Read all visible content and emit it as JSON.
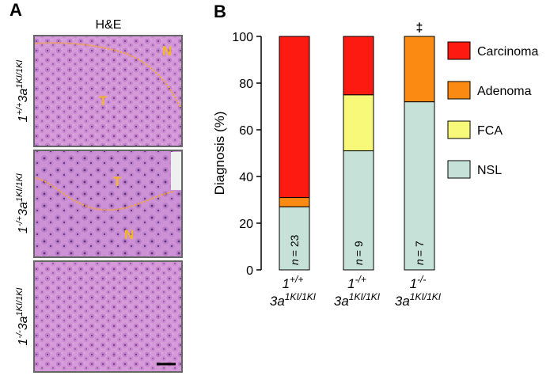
{
  "panel_a": {
    "label": "A",
    "stain": "H&E",
    "rows": [
      {
        "genotype": [
          "1",
          "+/+",
          "3a",
          "1KI/1KI"
        ],
        "regions": [
          "N",
          "T"
        ]
      },
      {
        "genotype": [
          "1",
          "-/+",
          "3a",
          "1KI/1KI"
        ],
        "regions": [
          "T",
          "N"
        ]
      },
      {
        "genotype": [
          "1",
          "-/-",
          "3a",
          "1KI/1KI"
        ],
        "regions": []
      }
    ]
  },
  "chart_data": {
    "type": "stacked_bar",
    "panel_label": "B",
    "y_label": "Diagnosis (%)",
    "categories": [
      {
        "line1": [
          "1",
          "+/+"
        ],
        "line2": [
          "3a",
          "1KI/1KI"
        ]
      },
      {
        "line1": [
          "1",
          "-/+"
        ],
        "line2": [
          "3a",
          "1KI/1KI"
        ]
      },
      {
        "line1": [
          "1",
          "-/-"
        ],
        "line2": [
          "3a",
          "1KI/1KI"
        ]
      }
    ],
    "series": [
      {
        "name": "NSL",
        "color": "#c6e2d8",
        "values": [
          27,
          51,
          72
        ]
      },
      {
        "name": "FCA",
        "color": "#f8f978",
        "values": [
          0,
          24,
          0
        ]
      },
      {
        "name": "Adenoma",
        "color": "#fb8a12",
        "values": [
          4,
          0,
          28
        ]
      },
      {
        "name": "Carcinoma",
        "color": "#fd1a10",
        "values": [
          69,
          25,
          0
        ]
      }
    ],
    "bar_annotations": [
      [
        "n",
        "= 23"
      ],
      [
        "n",
        "= 9"
      ],
      [
        "n",
        "= 7"
      ]
    ],
    "significance": [
      null,
      null,
      "‡"
    ],
    "ylim": [
      0,
      100
    ],
    "yticks": [
      0,
      20,
      40,
      60,
      80,
      100
    ]
  }
}
